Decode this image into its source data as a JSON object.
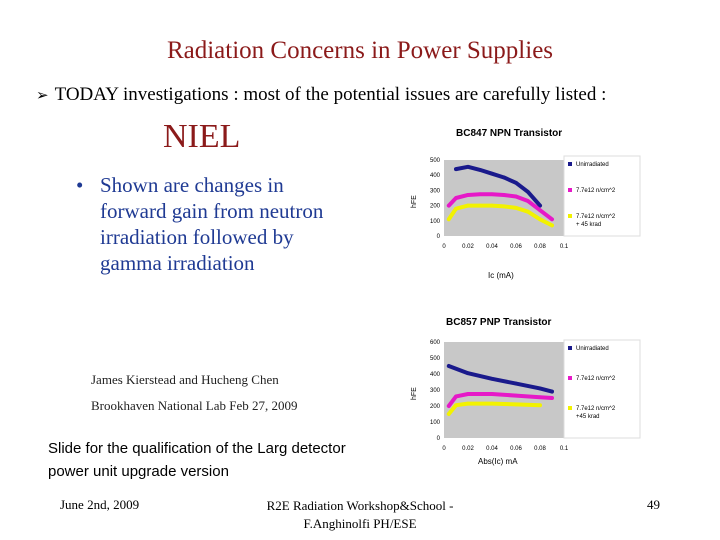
{
  "slide": {
    "title": "Radiation Concerns in Power Supplies",
    "topline": "TODAY investigations : most of the potential issues are carefully listed :",
    "heading": "NIEL",
    "bullet_text": "Shown are changes in forward gain from neutron irradiation followed by gamma irradiation",
    "author_line1": "James Kierstead and Hucheng Chen",
    "author_line2": "Brookhaven National Lab Feb 27, 2009",
    "note_line1": "Slide for the qualification of  the Larg detector",
    "note_line2": "power unit  upgrade version",
    "footer_left": "June 2nd, 2009",
    "footer_center_line1": "R2E Radiation Workshop&School -",
    "footer_center_line2": "F.Anghinolfi PH/ESE",
    "footer_right": "49"
  },
  "colors": {
    "title": "#8b1a1a",
    "bullet": "#1f3a93",
    "series_unirradiated": "#1a1a8c",
    "series_neutron": "#e619c8",
    "series_neutron_gamma": "#f2f200",
    "plot_bg": "#c8c8c8"
  },
  "chart_data": [
    {
      "type": "line",
      "title": "BC847 NPN Transistor",
      "ylabel": "hFE",
      "xlabel": "Ic (mA)",
      "xlim": [
        0,
        0.1
      ],
      "ylim": [
        0,
        500
      ],
      "yticks": [
        "0",
        "100",
        "200",
        "300",
        "400",
        "500"
      ],
      "xticks": [
        "0",
        "0.02",
        "0.04",
        "0.06",
        "0.08",
        "0.1"
      ],
      "series": [
        {
          "name": "Unirradiated",
          "x": [
            0.01,
            0.02,
            0.03,
            0.04,
            0.05,
            0.06,
            0.07,
            0.08
          ],
          "y": [
            440,
            455,
            435,
            410,
            385,
            350,
            290,
            200
          ]
        },
        {
          "name": "7.7e12 n/cm^2",
          "x": [
            0.004,
            0.01,
            0.02,
            0.03,
            0.04,
            0.05,
            0.06,
            0.07,
            0.08,
            0.09
          ],
          "y": [
            200,
            250,
            270,
            275,
            275,
            270,
            260,
            230,
            170,
            110
          ]
        },
        {
          "name": "7.7e12 n/cm^2 + 45 krad",
          "x": [
            0.004,
            0.01,
            0.02,
            0.03,
            0.04,
            0.05,
            0.06,
            0.07,
            0.08,
            0.09
          ],
          "y": [
            110,
            180,
            200,
            200,
            200,
            195,
            185,
            160,
            110,
            70
          ]
        }
      ],
      "legend": "right"
    },
    {
      "type": "line",
      "title": "BC857 PNP Transistor",
      "ylabel": "hFE",
      "xlabel": "Abs(Ic) mA",
      "xlim": [
        0,
        0.1
      ],
      "ylim": [
        0,
        600
      ],
      "yticks": [
        "0",
        "100",
        "200",
        "300",
        "400",
        "500",
        "600"
      ],
      "xticks": [
        "0",
        "0.02",
        "0.04",
        "0.06",
        "0.08",
        "0.1"
      ],
      "series": [
        {
          "name": "Unirradiated",
          "x": [
            0.004,
            0.02,
            0.04,
            0.06,
            0.08,
            0.09
          ],
          "y": [
            450,
            405,
            370,
            340,
            310,
            290
          ]
        },
        {
          "name": "7.7e12 n/cm^2",
          "x": [
            0.004,
            0.01,
            0.02,
            0.04,
            0.06,
            0.08,
            0.09
          ],
          "y": [
            200,
            260,
            275,
            275,
            265,
            255,
            250
          ]
        },
        {
          "name": "7.7e12 n/cm^2 +45 krad",
          "x": [
            0.004,
            0.01,
            0.02,
            0.04,
            0.06,
            0.08
          ],
          "y": [
            150,
            205,
            215,
            215,
            210,
            205
          ]
        }
      ],
      "legend": "right"
    }
  ]
}
